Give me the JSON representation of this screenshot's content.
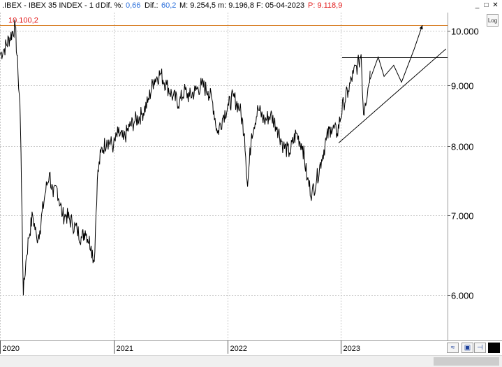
{
  "header": {
    "ticker": ".IBEX - IBEX 35 INDEX - 1 d",
    "dif_pct_label": "Dif. %:",
    "dif_pct_value": "0,66",
    "dif_label": "Dif.:",
    "dif_value": "60,2",
    "max_label": "M: 9.254,5",
    "min_label": "m: 9.196,8",
    "date_label": "F: 05-04-2023",
    "price_label": "P: 9.118,9"
  },
  "window_controls": {
    "minimize": "_",
    "maximize": "□",
    "close": "✕"
  },
  "log_button": "Log",
  "colors": {
    "price_line": "#000000",
    "resistance_line": "#d9822b",
    "grid": "#c8c8c8",
    "label_red": "#e21a1a",
    "label_blue": "#2a6fdb"
  },
  "footer_buttons": [
    "wave-icon",
    "save-icon",
    "pin-icon",
    "black-square-icon"
  ],
  "chart_data": {
    "type": "line",
    "title": "IBEX 35 INDEX",
    "xlabel": "",
    "ylabel": "",
    "y_scale": "log",
    "ylim": [
      5500,
      10350
    ],
    "yticks": [
      6000,
      7000,
      8000,
      9000,
      10000
    ],
    "ytick_labels": [
      "6.000",
      "7.000",
      "8.000",
      "9.000",
      "10.000"
    ],
    "xticks": [
      "2020-01-01",
      "2021-01-01",
      "2022-01-01",
      "2023-01-01"
    ],
    "xtick_labels": [
      "2020",
      "2021",
      "2022",
      "2023"
    ],
    "xlim": [
      "2020-01-01",
      "2023-12-10"
    ],
    "grid": true,
    "series": [
      {
        "x": [
          "2020-01-01",
          "2020-01-15",
          "2020-02-19",
          "2020-02-28",
          "2020-03-05",
          "2020-03-12",
          "2020-03-16",
          "2020-03-24",
          "2020-04-02",
          "2020-04-15",
          "2020-04-28",
          "2020-05-08",
          "2020-05-25",
          "2020-06-08",
          "2020-06-20",
          "2020-07-01",
          "2020-07-20",
          "2020-08-01",
          "2020-08-20",
          "2020-09-05",
          "2020-09-20",
          "2020-10-01",
          "2020-10-20",
          "2020-10-30",
          "2020-11-09",
          "2020-11-20",
          "2020-12-10",
          "2020-12-31",
          "2021-01-15",
          "2021-02-01",
          "2021-02-20",
          "2021-03-10",
          "2021-03-31",
          "2021-04-20",
          "2021-05-10",
          "2021-05-31",
          "2021-06-20",
          "2021-07-10",
          "2021-07-31",
          "2021-08-15",
          "2021-09-01",
          "2021-09-20",
          "2021-10-10",
          "2021-10-31",
          "2021-11-15",
          "2021-11-30",
          "2021-12-20",
          "2022-01-05",
          "2022-01-20",
          "2022-02-10",
          "2022-02-25",
          "2022-03-07",
          "2022-03-20",
          "2022-04-10",
          "2022-04-30",
          "2022-05-20",
          "2022-06-10",
          "2022-06-30",
          "2022-07-20",
          "2022-08-10",
          "2022-08-31",
          "2022-09-15",
          "2022-09-30",
          "2022-10-15",
          "2022-10-31",
          "2022-11-15",
          "2022-11-30",
          "2022-12-20",
          "2023-01-10",
          "2023-01-25",
          "2023-02-10",
          "2023-02-28",
          "2023-03-07",
          "2023-03-15",
          "2023-03-20",
          "2023-03-31",
          "2023-04-05"
        ],
        "y": [
          9550,
          9650,
          10080,
          9200,
          8700,
          7000,
          6000,
          6400,
          6700,
          7000,
          6700,
          6800,
          7300,
          7600,
          7250,
          7400,
          7000,
          7000,
          6900,
          6800,
          6700,
          6800,
          6600,
          6400,
          7500,
          7900,
          8100,
          8000,
          8200,
          8100,
          8300,
          8400,
          8500,
          8700,
          9100,
          9200,
          9000,
          8800,
          8700,
          8900,
          8800,
          8900,
          9000,
          8900,
          8700,
          8200,
          8500,
          8650,
          8800,
          8600,
          8200,
          7400,
          8200,
          8600,
          8400,
          8500,
          8300,
          8000,
          7900,
          8200,
          8000,
          7500,
          7300,
          7500,
          7800,
          8100,
          8300,
          8200,
          8700,
          8900,
          9200,
          9400,
          9550,
          8500,
          8700,
          9000,
          9250
        ]
      }
    ],
    "annotations": [
      {
        "type": "hline",
        "label": "10.100,2",
        "y": 10100,
        "color": "#d9822b"
      },
      {
        "type": "hline_segment",
        "y": 9500,
        "x": [
          "2023-01-05",
          "2023-12-10"
        ]
      },
      {
        "type": "trendline",
        "x": [
          "2022-12-25",
          "2023-12-05"
        ],
        "y": [
          8050,
          9650
        ]
      },
      {
        "type": "projection",
        "x": [
          "2023-04-05",
          "2023-05-01",
          "2023-05-20",
          "2023-06-20",
          "2023-07-15",
          "2023-08-25",
          "2023-09-20"
        ],
        "y": [
          9100,
          9500,
          9150,
          9350,
          9050,
          9650,
          10100
        ]
      }
    ]
  }
}
